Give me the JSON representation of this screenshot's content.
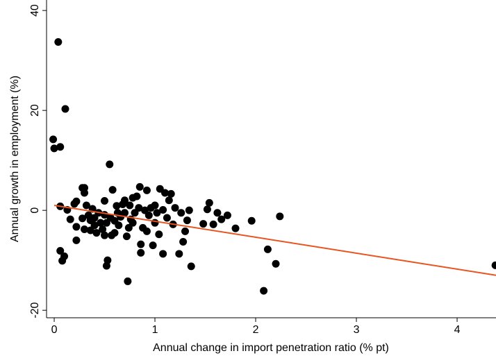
{
  "chart_data": {
    "type": "scatter",
    "x_label": "Annual change in import penetration ratio (% pt)",
    "y_label": "Annual growth in employment (%)",
    "color": "#000000",
    "x": [
      -0.01,
      0.0,
      0.04,
      0.06,
      0.11,
      0.06,
      0.06,
      0.1,
      0.08,
      0.13,
      0.16,
      0.2,
      0.22,
      0.22,
      0.22,
      0.28,
      0.3,
      0.3,
      0.28,
      0.3,
      0.32,
      0.34,
      0.36,
      0.36,
      0.38,
      0.4,
      0.4,
      0.42,
      0.44,
      0.46,
      0.48,
      0.5,
      0.5,
      0.5,
      0.52,
      0.52,
      0.53,
      0.55,
      0.56,
      0.57,
      0.58,
      0.6,
      0.6,
      0.62,
      0.63,
      0.64,
      0.66,
      0.68,
      0.7,
      0.7,
      0.72,
      0.73,
      0.74,
      0.75,
      0.76,
      0.78,
      0.78,
      0.8,
      0.82,
      0.84,
      0.85,
      0.86,
      0.86,
      0.88,
      0.9,
      0.92,
      0.92,
      0.94,
      0.96,
      0.98,
      1.0,
      1.0,
      1.02,
      1.04,
      1.05,
      1.08,
      1.08,
      1.1,
      1.12,
      1.14,
      1.16,
      1.18,
      1.2,
      1.24,
      1.26,
      1.28,
      1.3,
      1.32,
      1.34,
      1.36,
      1.48,
      1.52,
      1.54,
      1.58,
      1.62,
      1.66,
      1.72,
      1.8,
      1.96,
      2.08,
      2.12,
      2.2,
      2.24,
      4.38
    ],
    "values": [
      14.2,
      12.4,
      33.7,
      12.7,
      20.3,
      0.8,
      -8.1,
      -9.2,
      -10.1,
      0.1,
      -1.8,
      1.3,
      1.8,
      -3.3,
      -6.0,
      4.5,
      4.5,
      3.5,
      -1.6,
      -3.8,
      1.0,
      -1.0,
      -2.0,
      -4.0,
      0.3,
      -3.0,
      -1.5,
      -4.5,
      -0.5,
      -2.5,
      -3.8,
      -5.0,
      -0.9,
      1.9,
      -2.5,
      -11.1,
      -10.0,
      9.2,
      -1.5,
      -5.0,
      4.1,
      -2.1,
      -4.5,
      0.9,
      -0.5,
      -3.0,
      -1.3,
      1.2,
      -0.5,
      2.0,
      -5.2,
      -14.2,
      -3.5,
      1.0,
      -1.8,
      -2.5,
      2.5,
      -0.5,
      2.8,
      0.5,
      4.7,
      -6.8,
      -8.5,
      -3.5,
      0.0,
      4.0,
      -4.2,
      -1.0,
      0.5,
      -7.0,
      1.0,
      -2.5,
      -0.5,
      -4.8,
      4.3,
      0.1,
      -8.7,
      3.5,
      -1.5,
      2.0,
      3.3,
      -2.8,
      0.5,
      -8.7,
      -0.5,
      -6.3,
      -4.2,
      -2.0,
      0.0,
      -11.2,
      -2.7,
      0.2,
      1.5,
      -2.8,
      -0.5,
      -1.8,
      -1.0,
      -3.6,
      -2.1,
      -16.1,
      -7.8,
      -10.7,
      -1.2,
      -11.0
    ],
    "fit": {
      "x": [
        0,
        4.386
      ],
      "values": [
        1,
        -13
      ],
      "color": "#e8541e"
    },
    "xlim": [
      -0.076,
      4.386
    ],
    "ylim": [
      -21.5,
      42.1
    ],
    "xticks": [
      0,
      1,
      2,
      3,
      4
    ],
    "yticks": [
      -20,
      0,
      20,
      40
    ]
  }
}
